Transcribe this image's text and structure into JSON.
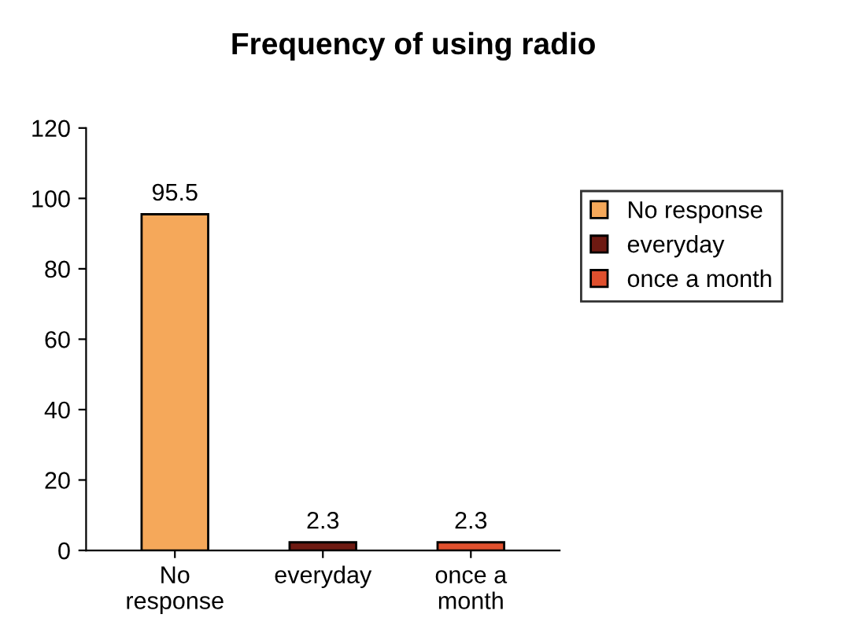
{
  "chart_data": {
    "type": "bar",
    "title": "Frequency of using radio",
    "categories": [
      "No\nresponse",
      "everyday",
      "once a\nmonth"
    ],
    "series": [
      {
        "name": "No response",
        "color": "#f5a85a",
        "values": [
          95.5,
          null,
          null
        ]
      },
      {
        "name": "everyday",
        "color": "#6e1a12",
        "values": [
          null,
          2.3,
          null
        ]
      },
      {
        "name": "once a month",
        "color": "#e0502e",
        "values": [
          null,
          null,
          2.3
        ]
      }
    ],
    "ylim": [
      0,
      120
    ],
    "yticks": [
      0,
      20,
      40,
      60,
      80,
      100,
      120
    ],
    "grid": false,
    "legend": "right",
    "data_labels": true
  }
}
